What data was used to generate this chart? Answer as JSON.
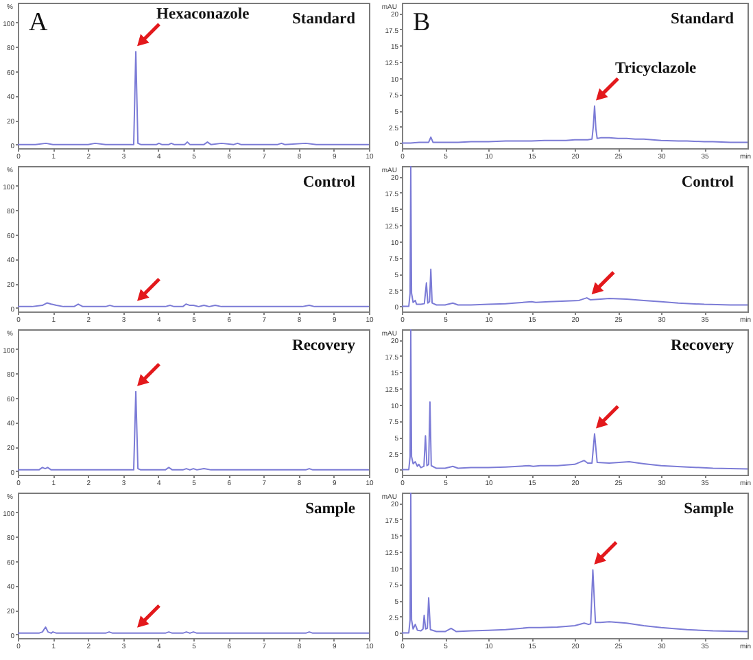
{
  "chart_data": [
    {
      "type": "line",
      "title": "Standard",
      "ylabel": "%",
      "x": [
        0,
        0.5,
        0.8,
        1.0,
        1.2,
        1.5,
        2.0,
        2.2,
        2.5,
        3.0,
        3.3,
        3.36,
        3.42,
        3.5,
        3.8,
        3.95,
        4.02,
        4.1,
        4.3,
        4.37,
        4.45,
        4.75,
        4.83,
        4.9,
        5.3,
        5.4,
        5.5,
        5.8,
        6.15,
        6.26,
        6.35,
        6.8,
        7.4,
        7.51,
        7.6,
        8.2,
        8.5,
        9.0,
        9.5,
        10
      ],
      "series": [
        {
          "color": "#7b7bd6",
          "values": [
            0,
            0,
            1,
            0,
            0,
            0,
            0,
            1,
            0,
            0,
            0,
            76,
            1,
            0,
            0,
            0,
            1,
            0,
            0,
            1,
            0,
            0,
            2,
            0,
            0,
            2,
            0,
            1,
            0,
            1,
            0,
            0,
            0,
            1,
            0,
            1,
            0,
            0,
            0,
            0
          ]
        }
      ],
      "xlim": [
        0,
        10
      ],
      "xticks": [
        0,
        1,
        2,
        3,
        4,
        5,
        6,
        7,
        8,
        9,
        10
      ],
      "ylim": [
        -3,
        116
      ],
      "yticks": [
        0,
        20,
        40,
        60,
        80,
        100
      ],
      "annotations": [
        "A",
        {
          "text": "Hexaconazole",
          "x": 3.36,
          "y": 76
        }
      ]
    },
    {
      "type": "line",
      "title": "Standard",
      "ylabel": "mAU",
      "xlabel": "min",
      "x": [
        0,
        1,
        2,
        3.1,
        3.35,
        3.6,
        5,
        6.5,
        8,
        10,
        12,
        14,
        15,
        16.5,
        18,
        19,
        20,
        21,
        21.5,
        22.0,
        22.15,
        22.3,
        22.45,
        22.6,
        23,
        24,
        25,
        26,
        27,
        28,
        30,
        32,
        33,
        35,
        36,
        38,
        40
      ],
      "series": [
        {
          "color": "#7b7bd6",
          "values": [
            0,
            0,
            0.1,
            0.1,
            0.9,
            0.1,
            0.1,
            0.1,
            0.2,
            0.2,
            0.3,
            0.3,
            0.3,
            0.4,
            0.4,
            0.4,
            0.5,
            0.5,
            0.5,
            0.6,
            2.5,
            5.7,
            2.2,
            0.7,
            0.8,
            0.8,
            0.7,
            0.7,
            0.6,
            0.6,
            0.4,
            0.3,
            0.3,
            0.2,
            0.2,
            0.1,
            0.1
          ]
        }
      ],
      "xlim": [
        0,
        40
      ],
      "xticks": [
        0,
        5,
        10,
        15,
        20,
        25,
        30,
        35
      ],
      "ylim": [
        -0.8,
        21.6
      ],
      "yticks": [
        0,
        2.5,
        5,
        7.5,
        10,
        12.5,
        15,
        17.5,
        20
      ],
      "annotations": [
        "B",
        {
          "text": "Tricyclazole",
          "x": 22.3,
          "y": 5.7
        }
      ]
    },
    {
      "type": "line",
      "title": "Control",
      "ylabel": "%",
      "x": [
        0,
        0.4,
        0.7,
        0.83,
        0.95,
        1.1,
        1.3,
        1.6,
        1.72,
        1.85,
        2.2,
        2.5,
        2.62,
        2.75,
        3.0,
        3.36,
        3.8,
        4.2,
        4.34,
        4.45,
        4.7,
        4.79,
        4.9,
        5.0,
        5.15,
        5.3,
        5.45,
        5.62,
        5.8,
        6.2,
        6.8,
        7.5,
        8.1,
        8.3,
        8.45,
        9.0,
        9.5,
        10
      ],
      "series": [
        {
          "color": "#7b7bd6",
          "values": [
            1,
            1,
            2,
            4,
            3,
            2,
            1,
            1,
            3,
            1,
            1,
            1,
            2,
            1,
            1,
            1,
            1,
            1,
            2,
            1,
            1,
            3,
            2,
            2,
            1,
            2,
            1,
            2,
            1,
            1,
            1,
            1,
            1,
            2,
            1,
            1,
            1,
            1
          ]
        }
      ],
      "xlim": [
        0,
        10
      ],
      "xticks": [
        0,
        1,
        2,
        3,
        4,
        5,
        6,
        7,
        8,
        9,
        10
      ],
      "ylim": [
        -3,
        116
      ],
      "yticks": [
        0,
        20,
        40,
        60,
        80,
        100
      ]
    },
    {
      "type": "line",
      "title": "Control",
      "ylabel": "mAU",
      "xlabel": "min",
      "x": [
        0,
        0.8,
        0.95,
        1.03,
        1.12,
        1.3,
        1.55,
        1.7,
        2.2,
        2.6,
        2.84,
        3.0,
        3.2,
        3.35,
        3.5,
        4,
        5,
        5.9,
        6.5,
        8,
        10,
        12,
        13,
        15,
        15.5,
        17,
        19,
        20.5,
        21.4,
        21.8,
        23,
        24,
        26,
        28,
        30,
        32,
        35,
        38,
        40
      ],
      "series": [
        {
          "color": "#7b7bd6",
          "values": [
            0,
            0,
            2,
            21.6,
            2,
            0.6,
            0.9,
            0.3,
            0.3,
            0.4,
            3.6,
            0.5,
            0.7,
            5.7,
            0.5,
            0.2,
            0.2,
            0.5,
            0.2,
            0.2,
            0.3,
            0.4,
            0.5,
            0.7,
            0.6,
            0.7,
            0.8,
            0.9,
            1.3,
            1.0,
            1.1,
            1.2,
            1.1,
            0.9,
            0.7,
            0.5,
            0.3,
            0.2,
            0.2
          ]
        }
      ],
      "xlim": [
        0,
        40
      ],
      "xticks": [
        0,
        5,
        10,
        15,
        20,
        25,
        30,
        35
      ],
      "ylim": [
        -0.8,
        21.6
      ],
      "yticks": [
        0,
        2.5,
        5,
        7.5,
        10,
        12.5,
        15,
        17.5,
        20
      ]
    },
    {
      "type": "line",
      "title": "Recovery",
      "ylabel": "%",
      "x": [
        0,
        0.4,
        0.6,
        0.7,
        0.78,
        0.85,
        0.95,
        1.2,
        1.6,
        2.0,
        2.5,
        3.0,
        3.3,
        3.36,
        3.42,
        3.5,
        3.8,
        4.2,
        4.3,
        4.4,
        4.7,
        4.8,
        4.9,
        5.0,
        5.1,
        5.3,
        5.5,
        6.0,
        6.5,
        7.0,
        7.5,
        8.2,
        8.3,
        8.4,
        9.0,
        9.5,
        10
      ],
      "series": [
        {
          "color": "#7b7bd6",
          "values": [
            1,
            1,
            1,
            3,
            2,
            3,
            1,
            1,
            1,
            1,
            1,
            1,
            1,
            65,
            2,
            1,
            1,
            1,
            3,
            1,
            1,
            2,
            1,
            2,
            1,
            2,
            1,
            1,
            1,
            1,
            1,
            1,
            2,
            1,
            1,
            1,
            1
          ]
        }
      ],
      "xlim": [
        0,
        10
      ],
      "xticks": [
        0,
        1,
        2,
        3,
        4,
        5,
        6,
        7,
        8,
        9,
        10
      ],
      "ylim": [
        -3,
        116
      ],
      "yticks": [
        0,
        20,
        40,
        60,
        80,
        100
      ]
    },
    {
      "type": "line",
      "title": "Recovery",
      "ylabel": "mAU",
      "xlabel": "min",
      "x": [
        0,
        0.8,
        0.95,
        1.03,
        1.12,
        1.3,
        1.55,
        1.8,
        1.96,
        2.2,
        2.55,
        2.73,
        2.9,
        3.1,
        3.25,
        3.4,
        4,
        5,
        5.9,
        6.5,
        8,
        10,
        12,
        14.7,
        15.2,
        16,
        18,
        20,
        21.1,
        21.5,
        22.0,
        22.3,
        22.6,
        24,
        26.3,
        28,
        30,
        33,
        36,
        40
      ],
      "series": [
        {
          "color": "#7b7bd6",
          "values": [
            0,
            0,
            2,
            21.6,
            2,
            0.9,
            1.2,
            0.5,
            0.8,
            0.3,
            0.5,
            5.2,
            0.6,
            0.8,
            10.4,
            0.6,
            0.2,
            0.2,
            0.5,
            0.2,
            0.3,
            0.3,
            0.4,
            0.6,
            0.5,
            0.6,
            0.6,
            0.8,
            1.4,
            1.0,
            1.0,
            5.5,
            1.1,
            1.0,
            1.2,
            0.9,
            0.6,
            0.4,
            0.2,
            0.1
          ]
        }
      ],
      "xlim": [
        0,
        40
      ],
      "xticks": [
        0,
        5,
        10,
        15,
        20,
        25,
        30,
        35
      ],
      "ylim": [
        -0.8,
        21.6
      ],
      "yticks": [
        0,
        2.5,
        5,
        7.5,
        10,
        12.5,
        15,
        17.5,
        20
      ]
    },
    {
      "type": "line",
      "title": "Sample",
      "ylabel": "%",
      "x": [
        0,
        0.4,
        0.6,
        0.7,
        0.79,
        0.86,
        0.95,
        1.0,
        1.1,
        1.4,
        2.0,
        2.5,
        2.6,
        2.7,
        3.0,
        3.36,
        3.8,
        4.2,
        4.3,
        4.4,
        4.7,
        4.8,
        4.9,
        5.0,
        5.1,
        5.5,
        6.0,
        6.5,
        7.0,
        7.5,
        8.2,
        8.3,
        8.4,
        9.0,
        9.5,
        10
      ],
      "series": [
        {
          "color": "#7b7bd6",
          "values": [
            1,
            1,
            1,
            2,
            6,
            2,
            1,
            2,
            1,
            1,
            1,
            1,
            2,
            1,
            1,
            1,
            1,
            1,
            2,
            1,
            1,
            2,
            1,
            2,
            1,
            1,
            1,
            1,
            1,
            1,
            1,
            2,
            1,
            1,
            1,
            1
          ]
        }
      ],
      "xlim": [
        0,
        10
      ],
      "xticks": [
        0,
        1,
        2,
        3,
        4,
        5,
        6,
        7,
        8,
        9,
        10
      ],
      "ylim": [
        -3,
        116
      ],
      "yticks": [
        0,
        20,
        40,
        60,
        80,
        100
      ]
    },
    {
      "type": "line",
      "title": "Sample",
      "ylabel": "mAU",
      "xlabel": "min",
      "x": [
        0,
        0.8,
        0.95,
        1.03,
        1.12,
        1.3,
        1.55,
        1.8,
        2.2,
        2.45,
        2.58,
        2.75,
        2.95,
        3.1,
        3.3,
        4,
        5,
        5.7,
        6.3,
        8,
        10,
        12,
        14.7,
        16,
        18,
        20,
        21.1,
        21.6,
        21.85,
        22.1,
        22.4,
        23,
        24,
        26,
        28,
        30,
        33,
        36,
        40
      ],
      "series": [
        {
          "color": "#7b7bd6",
          "values": [
            0,
            0,
            2,
            21.6,
            2,
            0.6,
            1.3,
            0.4,
            0.3,
            0.6,
            2.7,
            0.6,
            0.7,
            5.4,
            0.5,
            0.2,
            0.2,
            0.7,
            0.2,
            0.3,
            0.4,
            0.5,
            0.8,
            0.8,
            0.9,
            1.1,
            1.5,
            1.3,
            1.4,
            9.7,
            1.6,
            1.6,
            1.7,
            1.5,
            1.1,
            0.8,
            0.5,
            0.3,
            0.2
          ]
        }
      ],
      "xlim": [
        0,
        40
      ],
      "xticks": [
        0,
        5,
        10,
        15,
        20,
        25,
        30,
        35
      ],
      "ylim": [
        -0.8,
        21.6
      ],
      "yticks": [
        0,
        2.5,
        5,
        7.5,
        10,
        12.5,
        15,
        17.5,
        20
      ]
    }
  ]
}
